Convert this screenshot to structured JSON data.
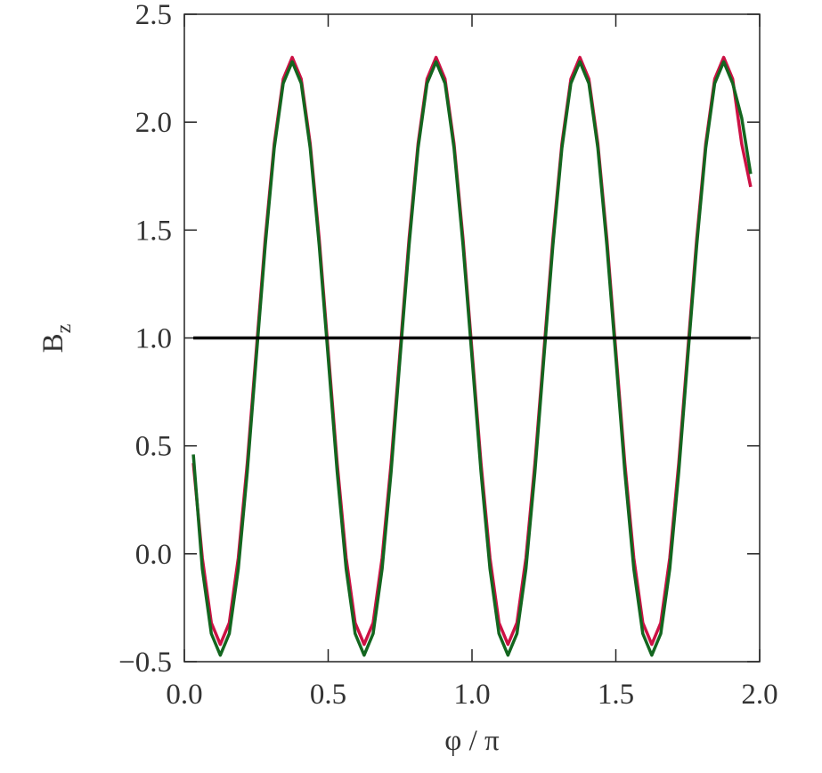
{
  "chart_data": {
    "type": "line",
    "x_label": "φ / π",
    "y_label": {
      "text": "B",
      "subscript": "z"
    },
    "x": [
      0.03125,
      0.0625,
      0.09375,
      0.125,
      0.15625,
      0.1875,
      0.21875,
      0.25,
      0.28125,
      0.3125,
      0.34375,
      0.375,
      0.40625,
      0.4375,
      0.46875,
      0.5,
      0.53125,
      0.5625,
      0.59375,
      0.625,
      0.65625,
      0.6875,
      0.71875,
      0.75,
      0.78125,
      0.8125,
      0.84375,
      0.875,
      0.90625,
      0.9375,
      0.96875,
      1.0,
      1.03125,
      1.0625,
      1.09375,
      1.125,
      1.15625,
      1.1875,
      1.21875,
      1.25,
      1.28125,
      1.3125,
      1.34375,
      1.375,
      1.40625,
      1.4375,
      1.46875,
      1.5,
      1.53125,
      1.5625,
      1.59375,
      1.625,
      1.65625,
      1.6875,
      1.71875,
      1.75,
      1.78125,
      1.8125,
      1.84375,
      1.875,
      1.90625,
      1.9375,
      1.96875
    ],
    "series": [
      {
        "color": "#cc1144",
        "values": [
          0.42,
          -0.02,
          -0.32,
          -0.42,
          -0.32,
          -0.02,
          0.42,
          0.94,
          1.46,
          1.9,
          2.2,
          2.3,
          2.2,
          1.9,
          1.46,
          0.94,
          0.42,
          -0.02,
          -0.32,
          -0.42,
          -0.32,
          -0.02,
          0.42,
          0.94,
          1.46,
          1.9,
          2.2,
          2.3,
          2.2,
          1.9,
          1.46,
          0.94,
          0.42,
          -0.02,
          -0.32,
          -0.42,
          -0.32,
          -0.02,
          0.42,
          0.94,
          1.46,
          1.9,
          2.2,
          2.3,
          2.2,
          1.9,
          1.46,
          0.94,
          0.42,
          -0.02,
          -0.32,
          -0.42,
          -0.32,
          -0.02,
          0.42,
          0.94,
          1.46,
          1.9,
          2.2,
          2.3,
          2.2,
          1.9,
          1.7
        ]
      },
      {
        "color": "#13661f",
        "values": [
          0.46,
          -0.07,
          -0.37,
          -0.47,
          -0.37,
          -0.07,
          0.38,
          0.91,
          1.43,
          1.88,
          2.18,
          2.28,
          2.18,
          1.88,
          1.43,
          0.91,
          0.38,
          -0.07,
          -0.37,
          -0.47,
          -0.37,
          -0.07,
          0.38,
          0.91,
          1.43,
          1.88,
          2.18,
          2.28,
          2.18,
          1.88,
          1.43,
          0.91,
          0.38,
          -0.07,
          -0.37,
          -0.47,
          -0.37,
          -0.07,
          0.38,
          0.91,
          1.43,
          1.88,
          2.18,
          2.28,
          2.18,
          1.88,
          1.43,
          0.91,
          0.38,
          -0.07,
          -0.37,
          -0.47,
          -0.37,
          -0.07,
          0.38,
          0.91,
          1.43,
          1.88,
          2.18,
          2.28,
          2.18,
          2.02,
          1.76
        ]
      },
      {
        "color": "#000000",
        "values": [
          1,
          1,
          1,
          1,
          1,
          1,
          1,
          1,
          1,
          1,
          1,
          1,
          1,
          1,
          1,
          1,
          1,
          1,
          1,
          1,
          1,
          1,
          1,
          1,
          1,
          1,
          1,
          1,
          1,
          1,
          1,
          1,
          1,
          1,
          1,
          1,
          1,
          1,
          1,
          1,
          1,
          1,
          1,
          1,
          1,
          1,
          1,
          1,
          1,
          1,
          1,
          1,
          1,
          1,
          1,
          1,
          1,
          1,
          1,
          1,
          1,
          1,
          1
        ]
      }
    ],
    "xlim": [
      0,
      2
    ],
    "ylim": [
      -0.5,
      2.5
    ],
    "xticks": [
      {
        "value": 0,
        "label": "0.0"
      },
      0.5,
      {
        "value": 1,
        "label": "1.0"
      },
      1.5,
      {
        "value": 2,
        "label": "2.0"
      }
    ],
    "yticks": [
      {
        "value": -0.5,
        "label": "−0.5"
      },
      {
        "value": 0,
        "label": "0.0"
      },
      0.5,
      {
        "value": 1,
        "label": "1.0"
      },
      1.5,
      {
        "value": 2,
        "label": "2.0"
      },
      2.5
    ]
  }
}
